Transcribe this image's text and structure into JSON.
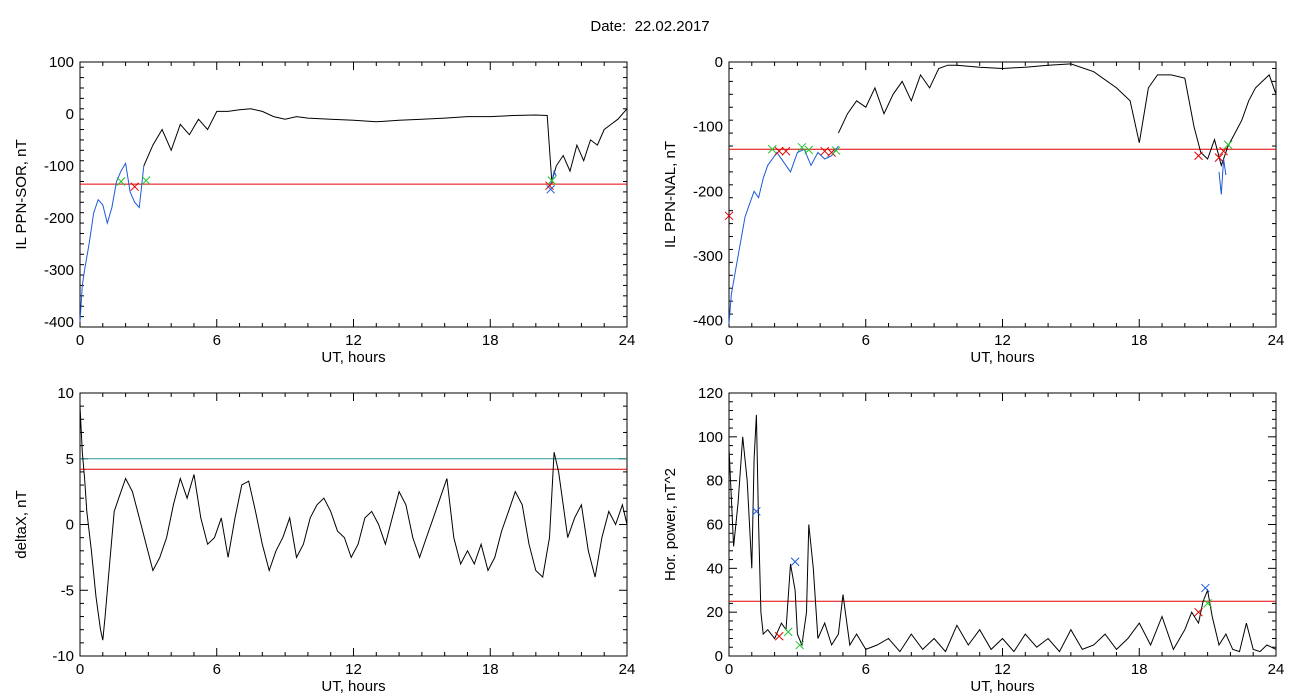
{
  "header": {
    "date_label": "Date:",
    "date_value": "22.02.2017"
  },
  "colors": {
    "black": "#000000",
    "red": "#e00000",
    "blue": "#1c5ad8",
    "green": "#22c42e",
    "teal": "#2a9a94"
  },
  "chart_data": [
    {
      "type": "line",
      "xlabel": "UT, hours",
      "ylabel": "IL PPN-SOR, nT",
      "xlim": [
        0,
        24
      ],
      "ylim": [
        -410,
        100
      ],
      "xticks": [
        0,
        6,
        12,
        18,
        24
      ],
      "yticks": [
        -400,
        -300,
        -200,
        -100,
        0,
        100
      ],
      "threshold": {
        "value": -135,
        "color": "#e00000"
      },
      "series": [
        {
          "color": "#000000",
          "x": [
            2.8,
            3.2,
            3.6,
            4.0,
            4.4,
            4.8,
            5.2,
            5.6,
            6.0,
            6.5,
            7.0,
            7.5,
            8.0,
            8.5,
            9.0,
            9.5,
            10,
            11,
            12,
            13,
            14,
            15,
            16,
            17,
            18,
            19,
            20,
            20.5,
            20.7,
            20.9,
            21.2,
            21.5,
            21.8,
            22.1,
            22.4,
            22.7,
            23.0,
            23.3,
            23.6,
            24.0
          ],
          "y": [
            -100,
            -60,
            -30,
            -70,
            -20,
            -40,
            -10,
            -30,
            5,
            5,
            8,
            10,
            5,
            -5,
            -10,
            -5,
            -8,
            -10,
            -12,
            -15,
            -12,
            -10,
            -8,
            -5,
            -5,
            -3,
            -2,
            -3,
            -130,
            -100,
            -80,
            -110,
            -60,
            -90,
            -50,
            -60,
            -30,
            -20,
            -10,
            10
          ]
        },
        {
          "color": "#1c5ad8",
          "x": [
            0.0,
            0.1,
            0.2,
            0.4,
            0.6,
            0.8,
            1.0,
            1.2,
            1.4,
            1.6,
            1.8,
            2.0,
            2.2,
            2.4,
            2.6,
            2.8
          ],
          "y": [
            -400,
            -330,
            -300,
            -250,
            -190,
            -165,
            -175,
            -210,
            -180,
            -130,
            -110,
            -95,
            -150,
            -170,
            -180,
            -100
          ]
        },
        {
          "color": "#1c5ad8",
          "x": [
            20.6,
            20.7,
            20.8,
            20.9
          ],
          "y": [
            -140,
            -130,
            -110,
            -120
          ]
        }
      ],
      "markers": [
        {
          "x": 1.8,
          "y": -130,
          "color": "#22c42e"
        },
        {
          "x": 2.4,
          "y": -140,
          "color": "#e00000"
        },
        {
          "x": 2.9,
          "y": -128,
          "color": "#22c42e"
        },
        {
          "x": 20.6,
          "y": -138,
          "color": "#e00000"
        },
        {
          "x": 20.7,
          "y": -128,
          "color": "#22c42e"
        },
        {
          "x": 20.65,
          "y": -145,
          "color": "#1c5ad8"
        }
      ]
    },
    {
      "type": "line",
      "xlabel": "UT, hours",
      "ylabel": "IL PPN-NAL, nT",
      "xlim": [
        0,
        24
      ],
      "ylim": [
        -410,
        0
      ],
      "xticks": [
        0,
        6,
        12,
        18,
        24
      ],
      "yticks": [
        -400,
        -300,
        -200,
        -100,
        0
      ],
      "threshold": {
        "value": -135,
        "color": "#e00000"
      },
      "series": [
        {
          "color": "#000000",
          "x": [
            4.8,
            5.2,
            5.6,
            6.0,
            6.4,
            6.8,
            7.2,
            7.6,
            8.0,
            8.4,
            8.8,
            9.2,
            9.6,
            10,
            11,
            12,
            13,
            14,
            15,
            16,
            17,
            17.6,
            18.0,
            18.4,
            18.8,
            19.4,
            20.0,
            20.4,
            20.7,
            21.0,
            21.3,
            21.6,
            21.9,
            22.2,
            22.5,
            22.8,
            23.1,
            23.4,
            23.7,
            24.0
          ],
          "y": [
            -110,
            -80,
            -60,
            -70,
            -40,
            -80,
            -50,
            -30,
            -60,
            -20,
            -40,
            -10,
            -5,
            -5,
            -8,
            -10,
            -8,
            -5,
            -3,
            -15,
            -40,
            -60,
            -125,
            -40,
            -20,
            -20,
            -25,
            -100,
            -140,
            -150,
            -120,
            -160,
            -130,
            -110,
            -90,
            -60,
            -40,
            -30,
            -20,
            -50
          ]
        },
        {
          "color": "#1c5ad8",
          "x": [
            0.0,
            0.1,
            0.3,
            0.5,
            0.7,
            0.9,
            1.1,
            1.3,
            1.5,
            1.7,
            1.9,
            2.1,
            2.4,
            2.7,
            3.0,
            3.3,
            3.6,
            3.9,
            4.2,
            4.5,
            4.8
          ],
          "y": [
            -405,
            -360,
            -320,
            -280,
            -240,
            -220,
            -200,
            -210,
            -180,
            -160,
            -150,
            -140,
            -155,
            -170,
            -140,
            -135,
            -160,
            -140,
            -150,
            -145,
            -130
          ]
        },
        {
          "color": "#1c5ad8",
          "x": [
            21.5,
            21.6,
            21.7,
            21.8
          ],
          "y": [
            -170,
            -205,
            -150,
            -175
          ]
        }
      ],
      "markers": [
        {
          "x": 0.0,
          "y": -238,
          "color": "#e00000"
        },
        {
          "x": 1.9,
          "y": -135,
          "color": "#22c42e"
        },
        {
          "x": 2.2,
          "y": -138,
          "color": "#e00000"
        },
        {
          "x": 2.5,
          "y": -138,
          "color": "#e00000"
        },
        {
          "x": 3.2,
          "y": -132,
          "color": "#22c42e"
        },
        {
          "x": 3.5,
          "y": -136,
          "color": "#22c42e"
        },
        {
          "x": 4.2,
          "y": -138,
          "color": "#e00000"
        },
        {
          "x": 4.5,
          "y": -140,
          "color": "#e00000"
        },
        {
          "x": 4.7,
          "y": -137,
          "color": "#22c42e"
        },
        {
          "x": 20.6,
          "y": -145,
          "color": "#e00000"
        },
        {
          "x": 21.5,
          "y": -148,
          "color": "#e00000"
        },
        {
          "x": 21.7,
          "y": -138,
          "color": "#e00000"
        },
        {
          "x": 21.9,
          "y": -128,
          "color": "#22c42e"
        }
      ]
    },
    {
      "type": "line",
      "xlabel": "UT, hours",
      "ylabel": "deltaX, nT",
      "xlim": [
        0,
        24
      ],
      "ylim": [
        -10,
        10
      ],
      "xticks": [
        0,
        6,
        12,
        18,
        24
      ],
      "yticks": [
        -10,
        -5,
        0,
        5,
        10
      ],
      "thresholds": [
        {
          "value": 5.0,
          "color": "#2a9a94"
        },
        {
          "value": 4.2,
          "color": "#e00000"
        }
      ],
      "series": [
        {
          "color": "#000000",
          "x": [
            0.0,
            0.1,
            0.2,
            0.3,
            0.5,
            0.7,
            0.9,
            1.0,
            1.1,
            1.3,
            1.5,
            1.7,
            2.0,
            2.3,
            2.6,
            2.9,
            3.2,
            3.5,
            3.8,
            4.1,
            4.4,
            4.7,
            5.0,
            5.3,
            5.6,
            5.9,
            6.2,
            6.5,
            6.8,
            7.1,
            7.4,
            7.7,
            8.0,
            8.3,
            8.6,
            8.9,
            9.2,
            9.5,
            9.8,
            10.1,
            10.4,
            10.7,
            11.0,
            11.3,
            11.6,
            11.9,
            12.2,
            12.5,
            12.8,
            13.1,
            13.4,
            13.7,
            14.0,
            14.3,
            14.6,
            14.9,
            15.2,
            15.5,
            15.8,
            16.1,
            16.4,
            16.7,
            17.0,
            17.3,
            17.6,
            17.9,
            18.2,
            18.5,
            18.8,
            19.1,
            19.4,
            19.7,
            20.0,
            20.3,
            20.6,
            20.8,
            21.0,
            21.2,
            21.4,
            21.7,
            22.0,
            22.3,
            22.6,
            22.9,
            23.2,
            23.5,
            23.8,
            24.0
          ],
          "y": [
            9.0,
            5.5,
            3.5,
            1.0,
            -2.0,
            -5.5,
            -8.0,
            -8.8,
            -7.0,
            -3.0,
            1.0,
            2.0,
            3.5,
            2.5,
            0.5,
            -1.5,
            -3.5,
            -2.5,
            -1.0,
            1.5,
            3.5,
            2.0,
            3.8,
            0.5,
            -1.5,
            -1.0,
            0.5,
            -2.5,
            0.5,
            3.0,
            3.3,
            1.0,
            -1.5,
            -3.5,
            -2.0,
            -1.0,
            0.5,
            -2.5,
            -1.5,
            0.5,
            1.5,
            2.0,
            1.0,
            -0.5,
            -1.0,
            -2.5,
            -1.5,
            0.5,
            1.0,
            0.0,
            -1.5,
            0.5,
            2.5,
            1.5,
            -1.0,
            -2.5,
            -1.0,
            0.5,
            2.0,
            3.5,
            -1.0,
            -3.0,
            -2.0,
            -3.0,
            -1.5,
            -3.5,
            -2.5,
            -0.5,
            1.0,
            2.5,
            1.5,
            -1.5,
            -3.5,
            -4.0,
            -1.0,
            5.5,
            4.0,
            1.5,
            -1.0,
            0.5,
            1.5,
            -2.0,
            -4.0,
            -1.0,
            1.0,
            0.0,
            1.5,
            0.0
          ]
        }
      ],
      "markers": []
    },
    {
      "type": "line",
      "xlabel": "UT, hours",
      "ylabel": "Hor. power, nT^2",
      "xlim": [
        0,
        24
      ],
      "ylim": [
        0,
        120
      ],
      "xticks": [
        0,
        6,
        12,
        18,
        24
      ],
      "yticks": [
        0,
        20,
        40,
        60,
        80,
        100,
        120
      ],
      "threshold": {
        "value": 25,
        "color": "#e00000"
      },
      "series": [
        {
          "color": "#000000",
          "x": [
            0.0,
            0.2,
            0.4,
            0.6,
            0.8,
            1.0,
            1.1,
            1.2,
            1.3,
            1.4,
            1.5,
            1.7,
            2.0,
            2.3,
            2.5,
            2.7,
            2.9,
            3.0,
            3.2,
            3.4,
            3.5,
            3.7,
            3.9,
            4.2,
            4.5,
            4.8,
            5.0,
            5.3,
            5.6,
            6.0,
            6.5,
            7.0,
            7.5,
            8.0,
            8.5,
            9.0,
            9.5,
            10,
            10.5,
            11,
            11.5,
            12,
            12.5,
            13,
            13.5,
            14,
            14.5,
            15,
            15.5,
            16,
            16.5,
            17,
            17.5,
            18,
            18.5,
            19,
            19.5,
            20,
            20.3,
            20.6,
            20.8,
            21.0,
            21.2,
            21.5,
            21.8,
            22.1,
            22.4,
            22.7,
            23.0,
            23.3,
            23.6,
            24.0
          ],
          "y": [
            95,
            50,
            70,
            100,
            80,
            40,
            90,
            110,
            60,
            20,
            10,
            12,
            8,
            15,
            12,
            42,
            30,
            10,
            5,
            20,
            60,
            40,
            8,
            15,
            5,
            10,
            28,
            5,
            10,
            3,
            5,
            8,
            2,
            10,
            3,
            8,
            2,
            14,
            5,
            12,
            3,
            8,
            2,
            10,
            4,
            8,
            2,
            12,
            3,
            5,
            10,
            3,
            8,
            15,
            5,
            18,
            3,
            12,
            20,
            15,
            25,
            30,
            18,
            5,
            10,
            3,
            2,
            15,
            3,
            2,
            5,
            3
          ]
        }
      ],
      "markers": [
        {
          "x": 1.2,
          "y": 66,
          "color": "#1c5ad8"
        },
        {
          "x": 2.2,
          "y": 9,
          "color": "#e00000"
        },
        {
          "x": 2.6,
          "y": 11,
          "color": "#22c42e"
        },
        {
          "x": 2.9,
          "y": 43,
          "color": "#1c5ad8"
        },
        {
          "x": 3.1,
          "y": 5,
          "color": "#22c42e"
        },
        {
          "x": 20.6,
          "y": 20,
          "color": "#e00000"
        },
        {
          "x": 20.9,
          "y": 31,
          "color": "#1c5ad8"
        },
        {
          "x": 21.0,
          "y": 24,
          "color": "#22c42e"
        }
      ]
    }
  ]
}
